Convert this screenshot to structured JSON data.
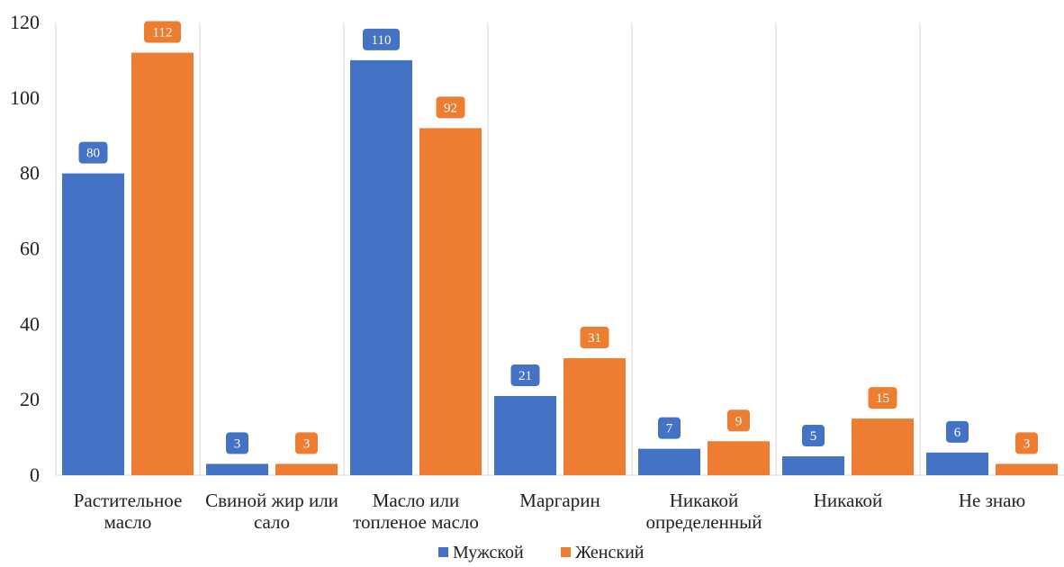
{
  "chart_data": {
    "type": "bar",
    "categories": [
      [
        "Растительное",
        "масло"
      ],
      [
        "Свиной жир или",
        "сало"
      ],
      [
        "Масло или",
        "топленое масло"
      ],
      [
        "Маргарин"
      ],
      [
        "Никакой",
        "определенный"
      ],
      [
        "Никакой"
      ],
      [
        "Не знаю"
      ]
    ],
    "series": [
      {
        "name": "Мужской",
        "color": "#4472C4",
        "values": [
          80,
          3,
          110,
          21,
          7,
          5,
          6
        ]
      },
      {
        "name": "Женский",
        "color": "#ED7D31",
        "values": [
          112,
          3,
          92,
          31,
          9,
          15,
          3
        ]
      }
    ],
    "ylim": [
      0,
      120
    ],
    "yticks": [
      0,
      20,
      40,
      60,
      80,
      100,
      120
    ],
    "grid": "vertical category separators",
    "legend": "bottom-center"
  }
}
